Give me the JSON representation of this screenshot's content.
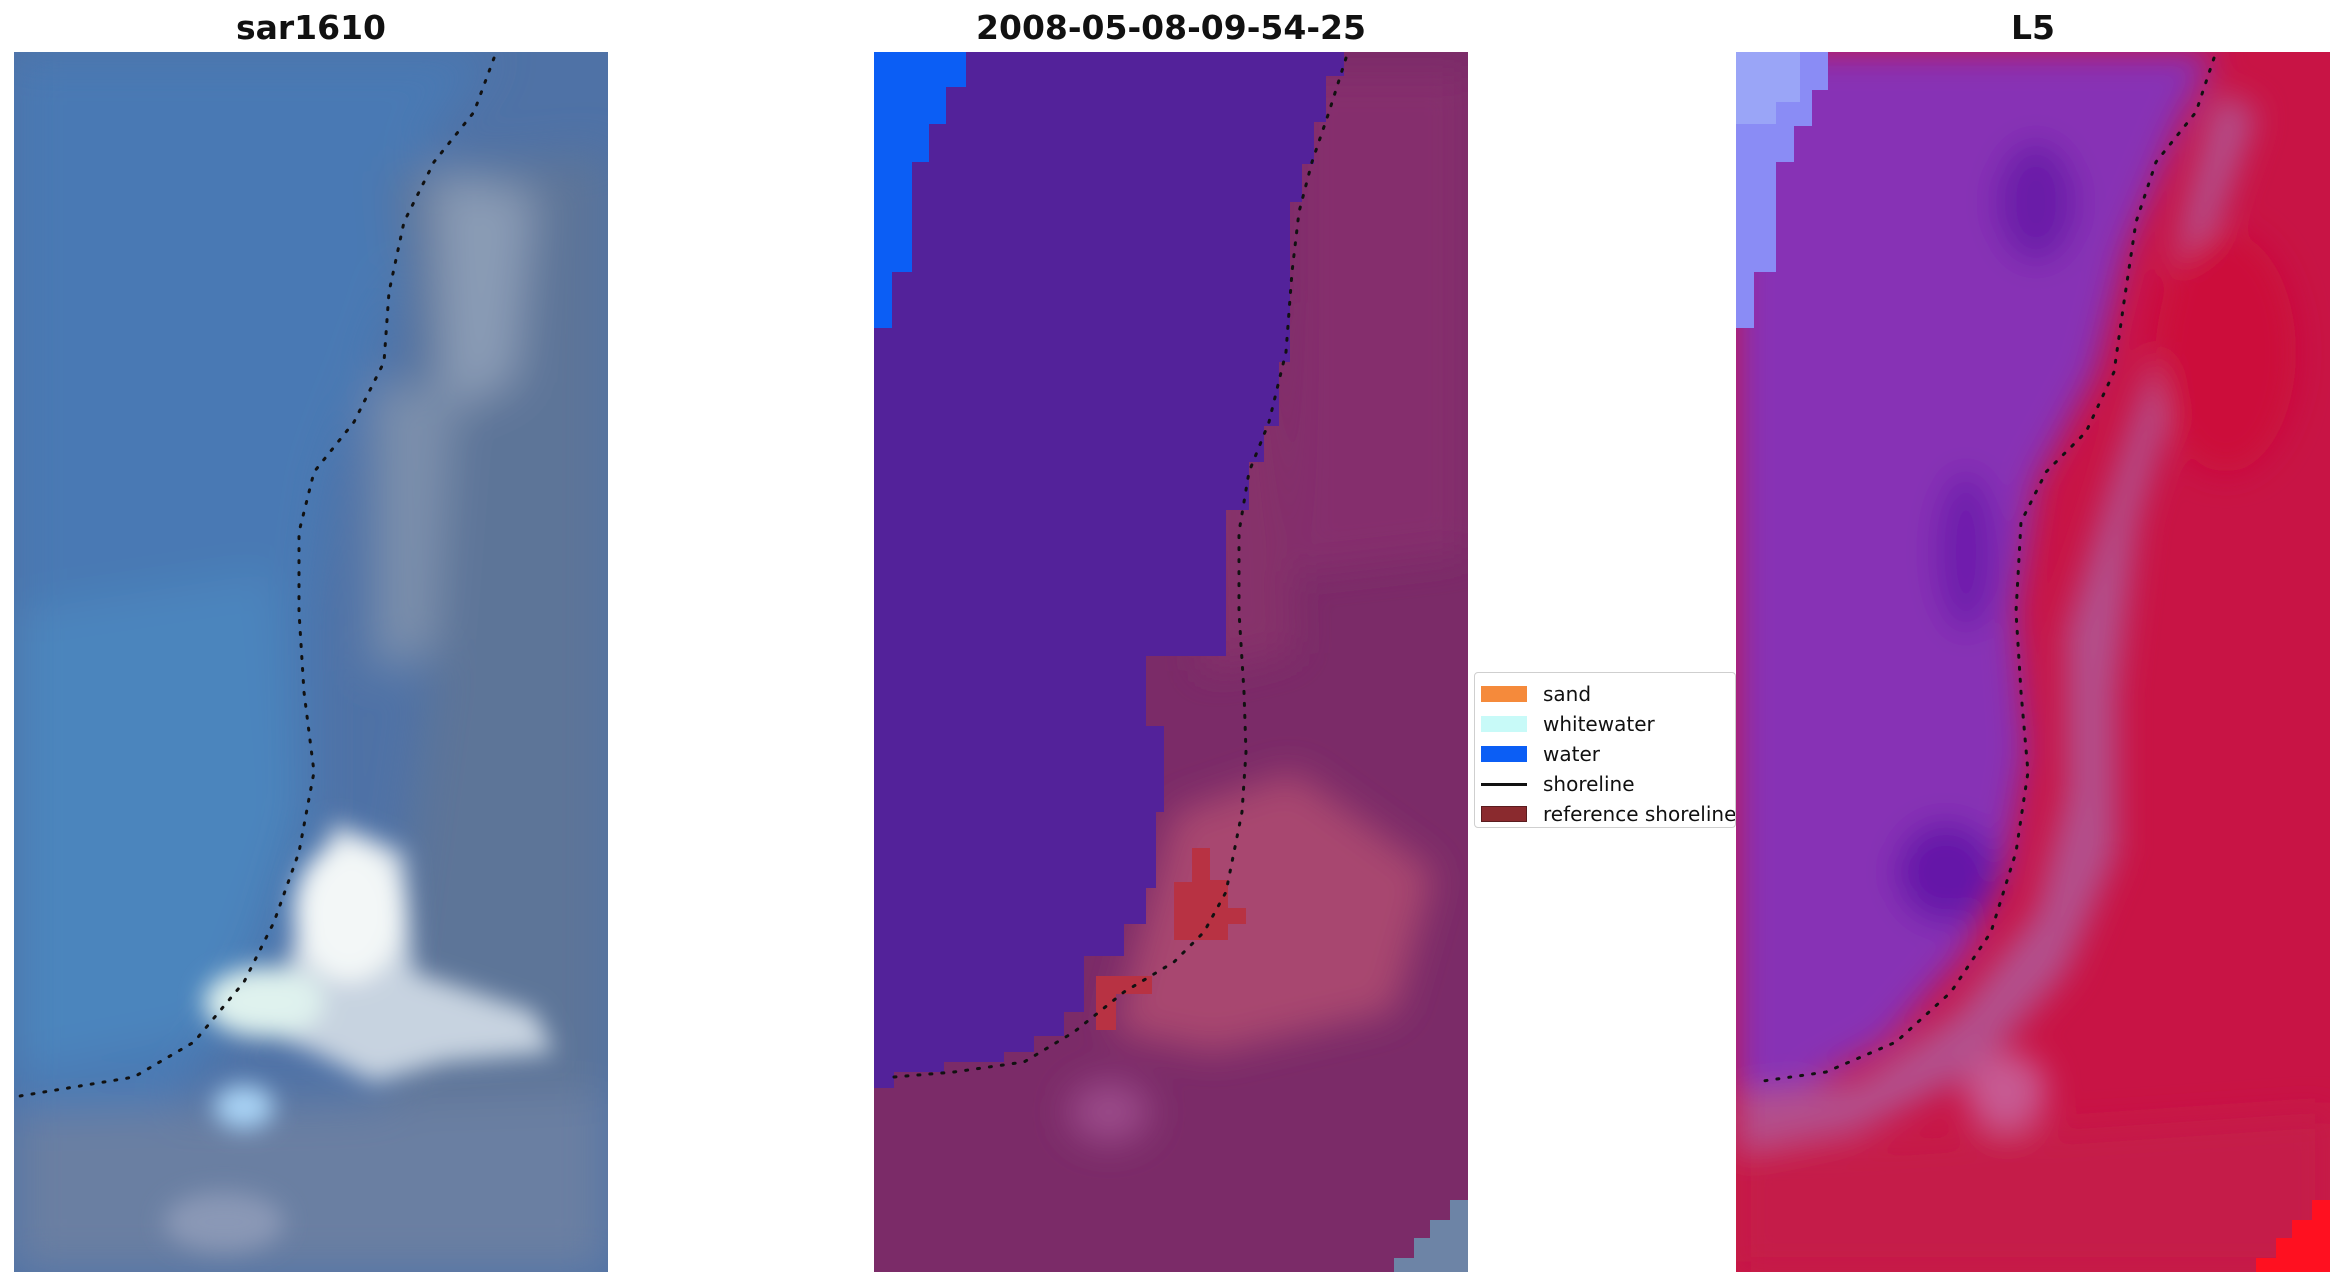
{
  "panels": [
    {
      "id": "rgb",
      "title": "sar1610"
    },
    {
      "id": "classified",
      "title": "2008-05-08-09-54-25"
    },
    {
      "id": "index",
      "title": "L5"
    }
  ],
  "legend": {
    "items": [
      {
        "label": "sand",
        "color": "#f58a3b",
        "kind": "patch"
      },
      {
        "label": "whitewater",
        "color": "#c8faf8",
        "kind": "patch"
      },
      {
        "label": "water",
        "color": "#0b5ef5",
        "kind": "patch"
      },
      {
        "label": "shoreline",
        "color": "#111111",
        "kind": "line"
      },
      {
        "label": "reference shoreline",
        "color": "#8a2a2e",
        "kind": "patch"
      }
    ]
  },
  "colors": {
    "rgb_water": "#4d78b0",
    "rgb_land": "#5f7aa0",
    "rgb_bright": "#e9f3f2",
    "class_water": "#53229a",
    "class_land": "#7e2b6a",
    "class_water_blue": "#0b5ef5",
    "class_ref": "#b83243",
    "index_water": "#8a34b8",
    "index_land": "#c61446",
    "index_bright_red": "#ff1020",
    "index_light_blue": "#8a8cf5"
  }
}
